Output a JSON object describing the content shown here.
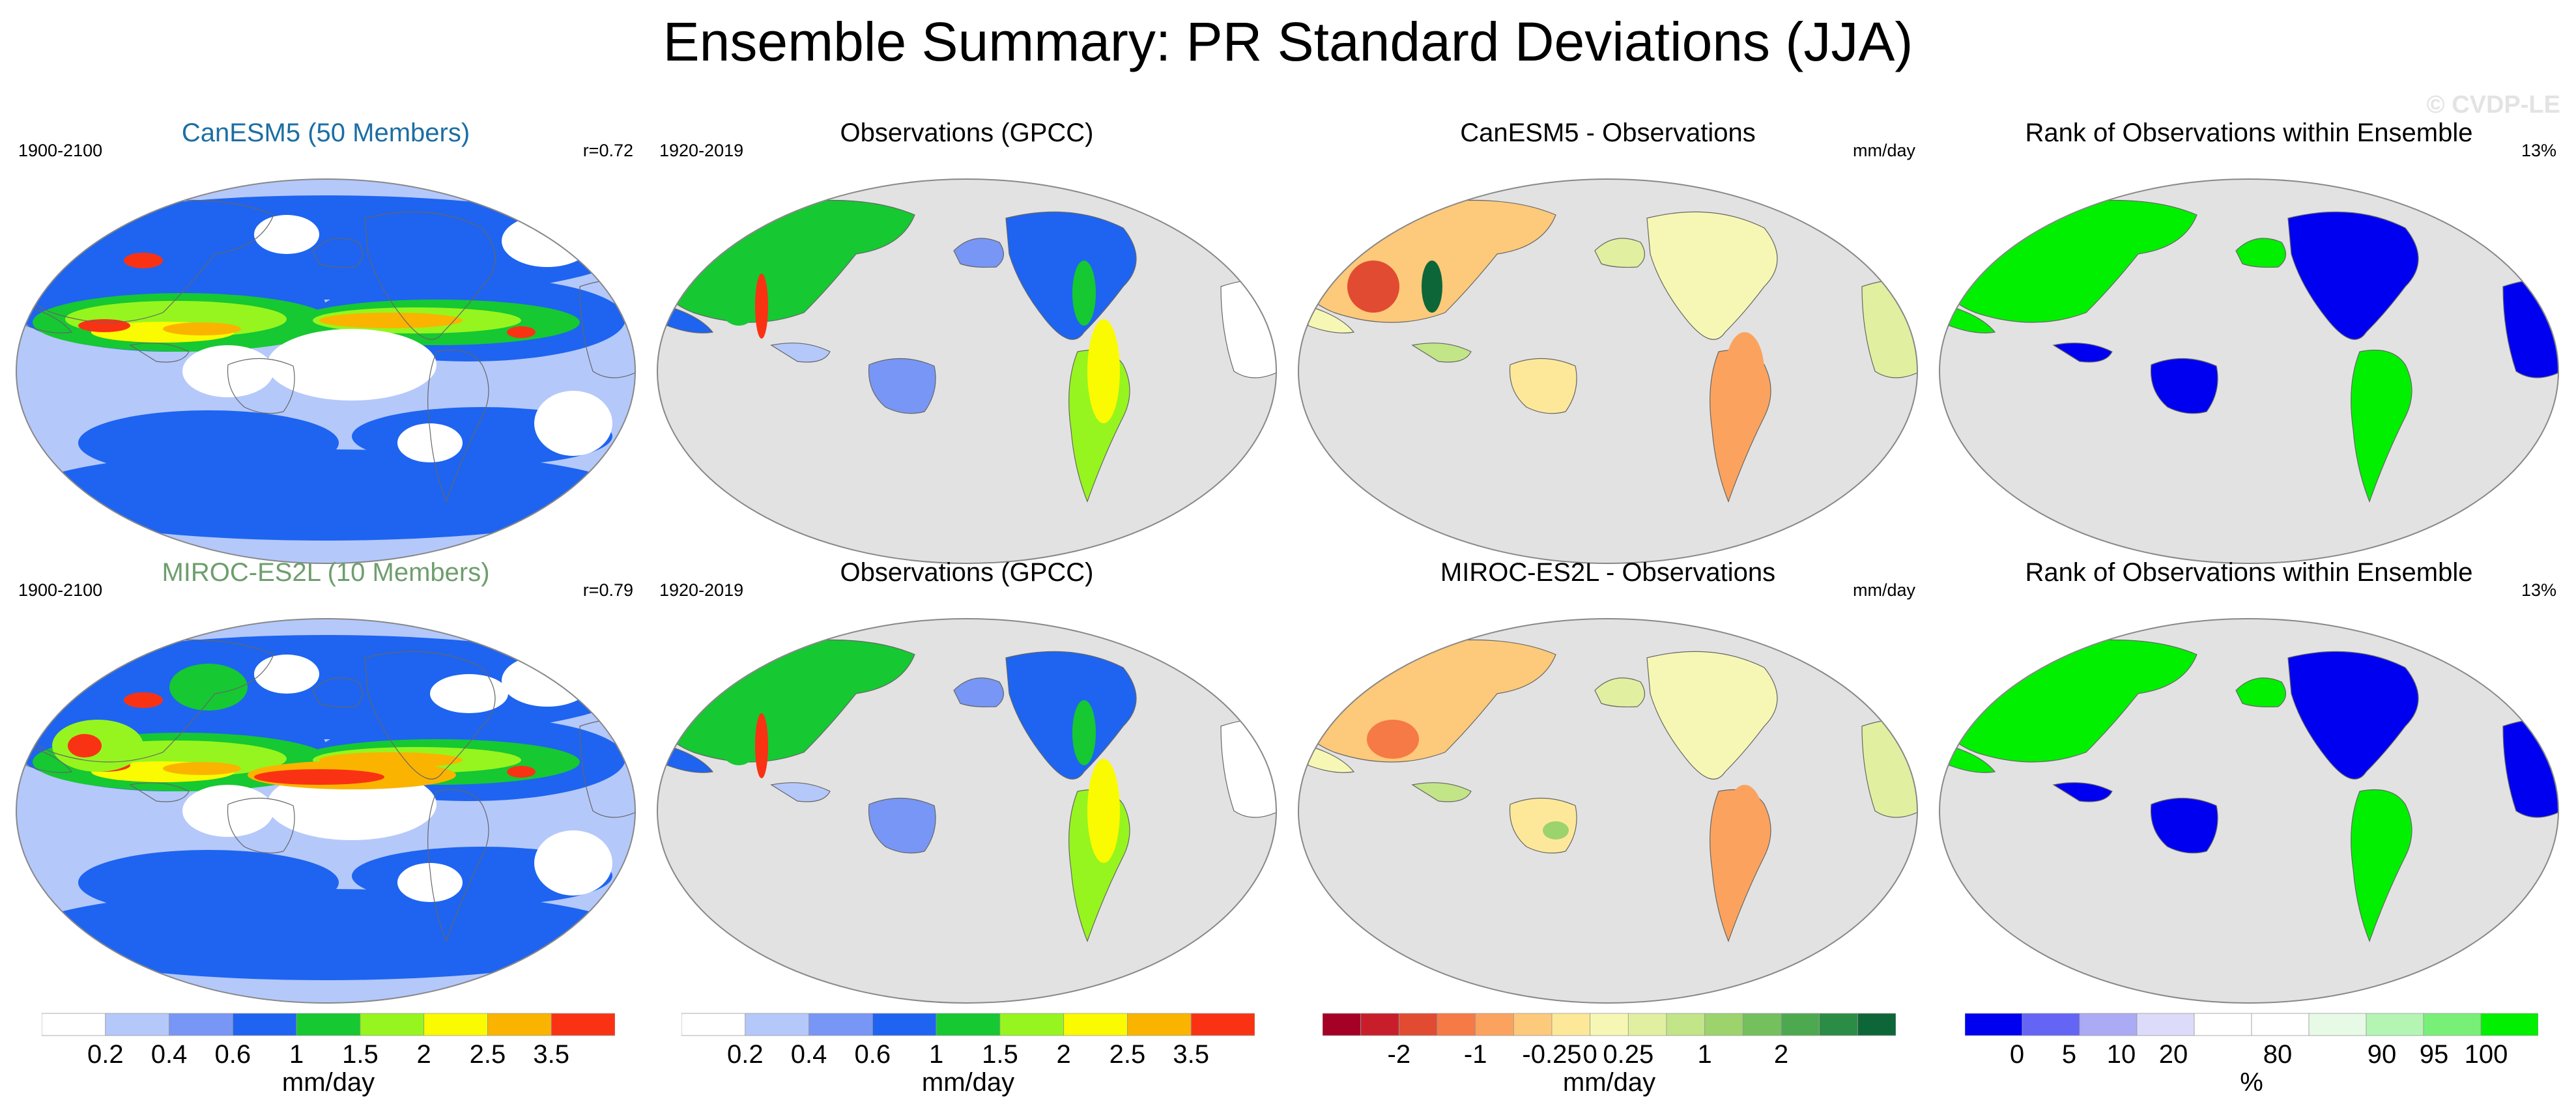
{
  "figure": {
    "title": "Ensemble Summary: PR Standard Deviations (JJA)",
    "watermark": "© CVDP-LE"
  },
  "colors": {
    "ocean_gray": "#e2e2e2",
    "land_gray": "#d0d0d0",
    "model1_title": "#1c6ea4",
    "model2_title": "#6e9e6e"
  },
  "chart_data": [
    {
      "type": "heatmap",
      "name": "canesm5-ensemble-mean",
      "title": "CanESM5 (50 Members)",
      "left_label": "1900-2100",
      "right_label": "r=0.72",
      "field": "ensemble-mean PR standard deviation (global)",
      "units": "mm/day"
    },
    {
      "type": "heatmap",
      "name": "observations-gpcc-1",
      "title": "Observations (GPCC)",
      "left_label": "1920-2019",
      "right_label": "",
      "field": "observed PR standard deviation (land only)",
      "units": "mm/day"
    },
    {
      "type": "heatmap",
      "name": "canesm5-minus-observations",
      "title": "CanESM5 - Observations",
      "left_label": "",
      "right_label": "mm/day",
      "field": "difference over land",
      "units": "mm/day"
    },
    {
      "type": "heatmap",
      "name": "rank-within-ensemble-1",
      "title": "Rank of Observations within Ensemble",
      "left_label": "",
      "right_label": "13%",
      "field": "percentile rank of observations",
      "units": "%"
    },
    {
      "type": "heatmap",
      "name": "miroc-es2l-ensemble-mean",
      "title": "MIROC-ES2L (10 Members)",
      "left_label": "1900-2100",
      "right_label": "r=0.79",
      "field": "ensemble-mean PR standard deviation (global)",
      "units": "mm/day"
    },
    {
      "type": "heatmap",
      "name": "observations-gpcc-2",
      "title": "Observations (GPCC)",
      "left_label": "1920-2019",
      "right_label": "",
      "field": "observed PR standard deviation (land only)",
      "units": "mm/day"
    },
    {
      "type": "heatmap",
      "name": "miroc-es2l-minus-observations",
      "title": "MIROC-ES2L - Observations",
      "left_label": "",
      "right_label": "mm/day",
      "field": "difference over land",
      "units": "mm/day"
    },
    {
      "type": "heatmap",
      "name": "rank-within-ensemble-2",
      "title": "Rank of Observations within Ensemble",
      "left_label": "",
      "right_label": "13%",
      "field": "percentile rank of observations",
      "units": "%"
    }
  ],
  "colorbars": [
    {
      "name": "stddev-colorbar-1",
      "label": "mm/day",
      "colors": [
        "#ffffff",
        "#b4c8fa",
        "#7896f5",
        "#1e64f0",
        "#16c832",
        "#96f51e",
        "#fafa00",
        "#fab400",
        "#fa3214"
      ],
      "ticks": [
        "0.2",
        "0.4",
        "0.6",
        "1",
        "1.5",
        "2",
        "2.5",
        "3.5"
      ]
    },
    {
      "name": "stddev-colorbar-2",
      "label": "mm/day",
      "colors": [
        "#ffffff",
        "#b4c8fa",
        "#7896f5",
        "#1e64f0",
        "#16c832",
        "#96f51e",
        "#fafa00",
        "#fab400",
        "#fa3214"
      ],
      "ticks": [
        "0.2",
        "0.4",
        "0.6",
        "1",
        "1.5",
        "2",
        "2.5",
        "3.5"
      ]
    },
    {
      "name": "difference-colorbar",
      "label": "mm/day",
      "colors": [
        "#a50026",
        "#c81e2c",
        "#e14b32",
        "#f57a46",
        "#fba35e",
        "#fdc97a",
        "#fde89a",
        "#f6f7b4",
        "#e0f0a0",
        "#c2e587",
        "#9dd36c",
        "#73c05d",
        "#4da94f",
        "#2b8c45",
        "#0d6637"
      ],
      "ticks": [
        "-2",
        "-1",
        "-0.25",
        "0",
        "0.25",
        "1",
        "2"
      ],
      "tick_positions": [
        2,
        4,
        6,
        7,
        8,
        10,
        12
      ]
    },
    {
      "name": "rank-colorbar",
      "label": "%",
      "colors": [
        "#0000f0",
        "#6464f5",
        "#aaaaf5",
        "#dcdcfa",
        "#ffffff",
        "#ffffff",
        "#e6fae6",
        "#b4f5b4",
        "#78f078",
        "#00f000"
      ],
      "ticks": [
        "0",
        "5",
        "10",
        "20",
        "80",
        "90",
        "95",
        "100"
      ],
      "tick_positions": [
        1,
        2,
        3,
        4,
        6,
        8,
        9,
        10
      ],
      "tick_total": 11
    }
  ]
}
